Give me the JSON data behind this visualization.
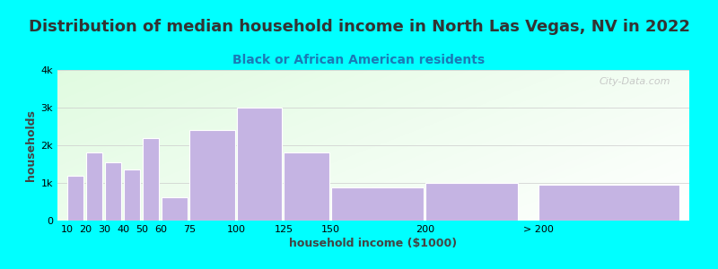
{
  "title": "Distribution of median household income in North Las Vegas, NV in 2022",
  "subtitle": "Black or African American residents",
  "xlabel": "household income ($1000)",
  "ylabel": "households",
  "bar_color": "#c5b4e3",
  "background_color": "#00ffff",
  "categories": [
    "10",
    "20",
    "30",
    "40",
    "50",
    "60",
    "75",
    "100",
    "125",
    "150",
    "200",
    "> 200"
  ],
  "values": [
    1200,
    1800,
    1550,
    1350,
    2200,
    620,
    2400,
    3000,
    1800,
    880,
    1000,
    950
  ],
  "bar_lefts": [
    10,
    20,
    30,
    40,
    50,
    60,
    75,
    100,
    125,
    150,
    200,
    260
  ],
  "bar_widths": [
    9,
    9,
    9,
    9,
    9,
    14,
    24,
    24,
    24,
    49,
    49,
    75
  ],
  "ylim": [
    0,
    4000
  ],
  "yticks": [
    0,
    1000,
    2000,
    3000,
    4000
  ],
  "ytick_labels": [
    "0",
    "1k",
    "2k",
    "3k",
    "4k"
  ],
  "title_fontsize": 13,
  "subtitle_fontsize": 10,
  "axis_label_fontsize": 9,
  "tick_fontsize": 8,
  "watermark": "City-Data.com",
  "title_color": "#333333",
  "subtitle_color": "#1a7ab5"
}
